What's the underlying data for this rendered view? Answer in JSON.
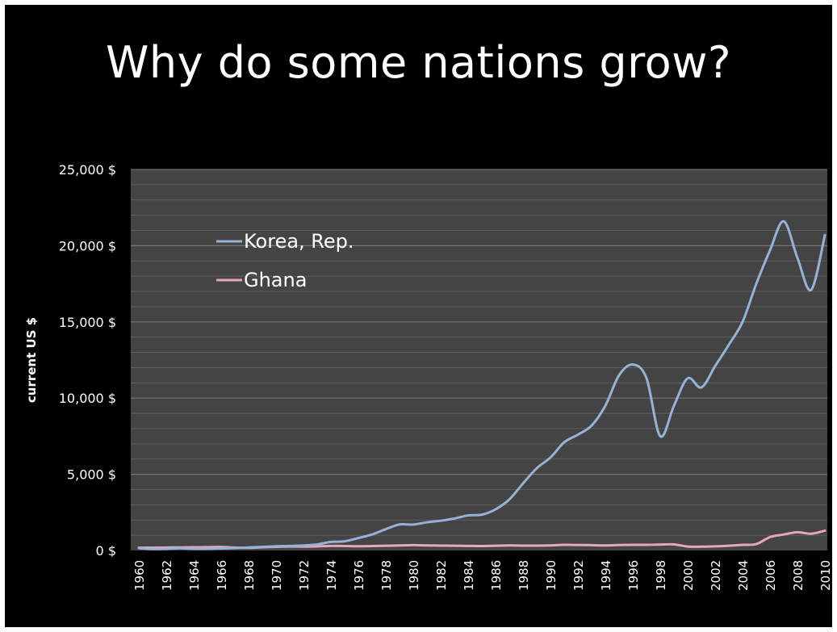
{
  "slide": {
    "title": "Why do some nations grow?"
  },
  "colors": {
    "background": "#000000",
    "plot_area": "#444444",
    "gridline": "#7a7a7a",
    "korea": "#95B3D7",
    "ghana": "#E6A6B3",
    "text": "#ffffff"
  },
  "chart_data": {
    "type": "line",
    "title": "",
    "xlabel": "",
    "ylabel": "current US $",
    "ylim": [
      0,
      25000
    ],
    "xlim": [
      1960,
      2010
    ],
    "grid": true,
    "legend_position": "upper-left inside plot",
    "y_ticks": [
      0,
      5000,
      10000,
      15000,
      20000,
      25000
    ],
    "y_tick_labels": [
      "0 $",
      "5,000 $",
      "10,000 $",
      "15,000 $",
      "20,000 $",
      "25,000 $"
    ],
    "x_tick_labels": [
      "1960",
      "1962",
      "1964",
      "1966",
      "1968",
      "1970",
      "1972",
      "1974",
      "1976",
      "1978",
      "1980",
      "1982",
      "1984",
      "1986",
      "1988",
      "1990",
      "1992",
      "1994",
      "1996",
      "1998",
      "2000",
      "2002",
      "2004",
      "2006",
      "2008",
      "2010"
    ],
    "x": [
      1960,
      1961,
      1962,
      1963,
      1964,
      1965,
      1966,
      1967,
      1968,
      1969,
      1970,
      1971,
      1972,
      1973,
      1974,
      1975,
      1976,
      1977,
      1978,
      1979,
      1980,
      1981,
      1982,
      1983,
      1984,
      1985,
      1986,
      1987,
      1988,
      1989,
      1990,
      1991,
      1992,
      1993,
      1994,
      1995,
      1996,
      1997,
      1998,
      1999,
      2000,
      2001,
      2002,
      2003,
      2004,
      2005,
      2006,
      2007,
      2008,
      2009,
      2010
    ],
    "series": [
      {
        "name": "Korea, Rep.",
        "values": [
          155,
          95,
          105,
          145,
          110,
          110,
          130,
          160,
          200,
          240,
          280,
          300,
          330,
          400,
          560,
          600,
          820,
          1050,
          1400,
          1710,
          1700,
          1850,
          1950,
          2100,
          2300,
          2350,
          2700,
          3350,
          4400,
          5400,
          6100,
          7100,
          7600,
          8200,
          9500,
          11500,
          12200,
          11300,
          7500,
          9500,
          11300,
          10700,
          12100,
          13500,
          15000,
          17500,
          19700,
          21600,
          19200,
          17100,
          20700
        ]
      },
      {
        "name": "Ghana",
        "values": [
          180,
          185,
          190,
          200,
          210,
          220,
          230,
          190,
          170,
          210,
          240,
          260,
          250,
          270,
          300,
          290,
          280,
          290,
          310,
          330,
          350,
          330,
          320,
          310,
          300,
          290,
          310,
          330,
          320,
          320,
          330,
          370,
          360,
          350,
          330,
          360,
          370,
          370,
          390,
          400,
          260,
          250,
          270,
          310,
          370,
          420,
          880,
          1050,
          1200,
          1100,
          1300
        ]
      }
    ]
  }
}
